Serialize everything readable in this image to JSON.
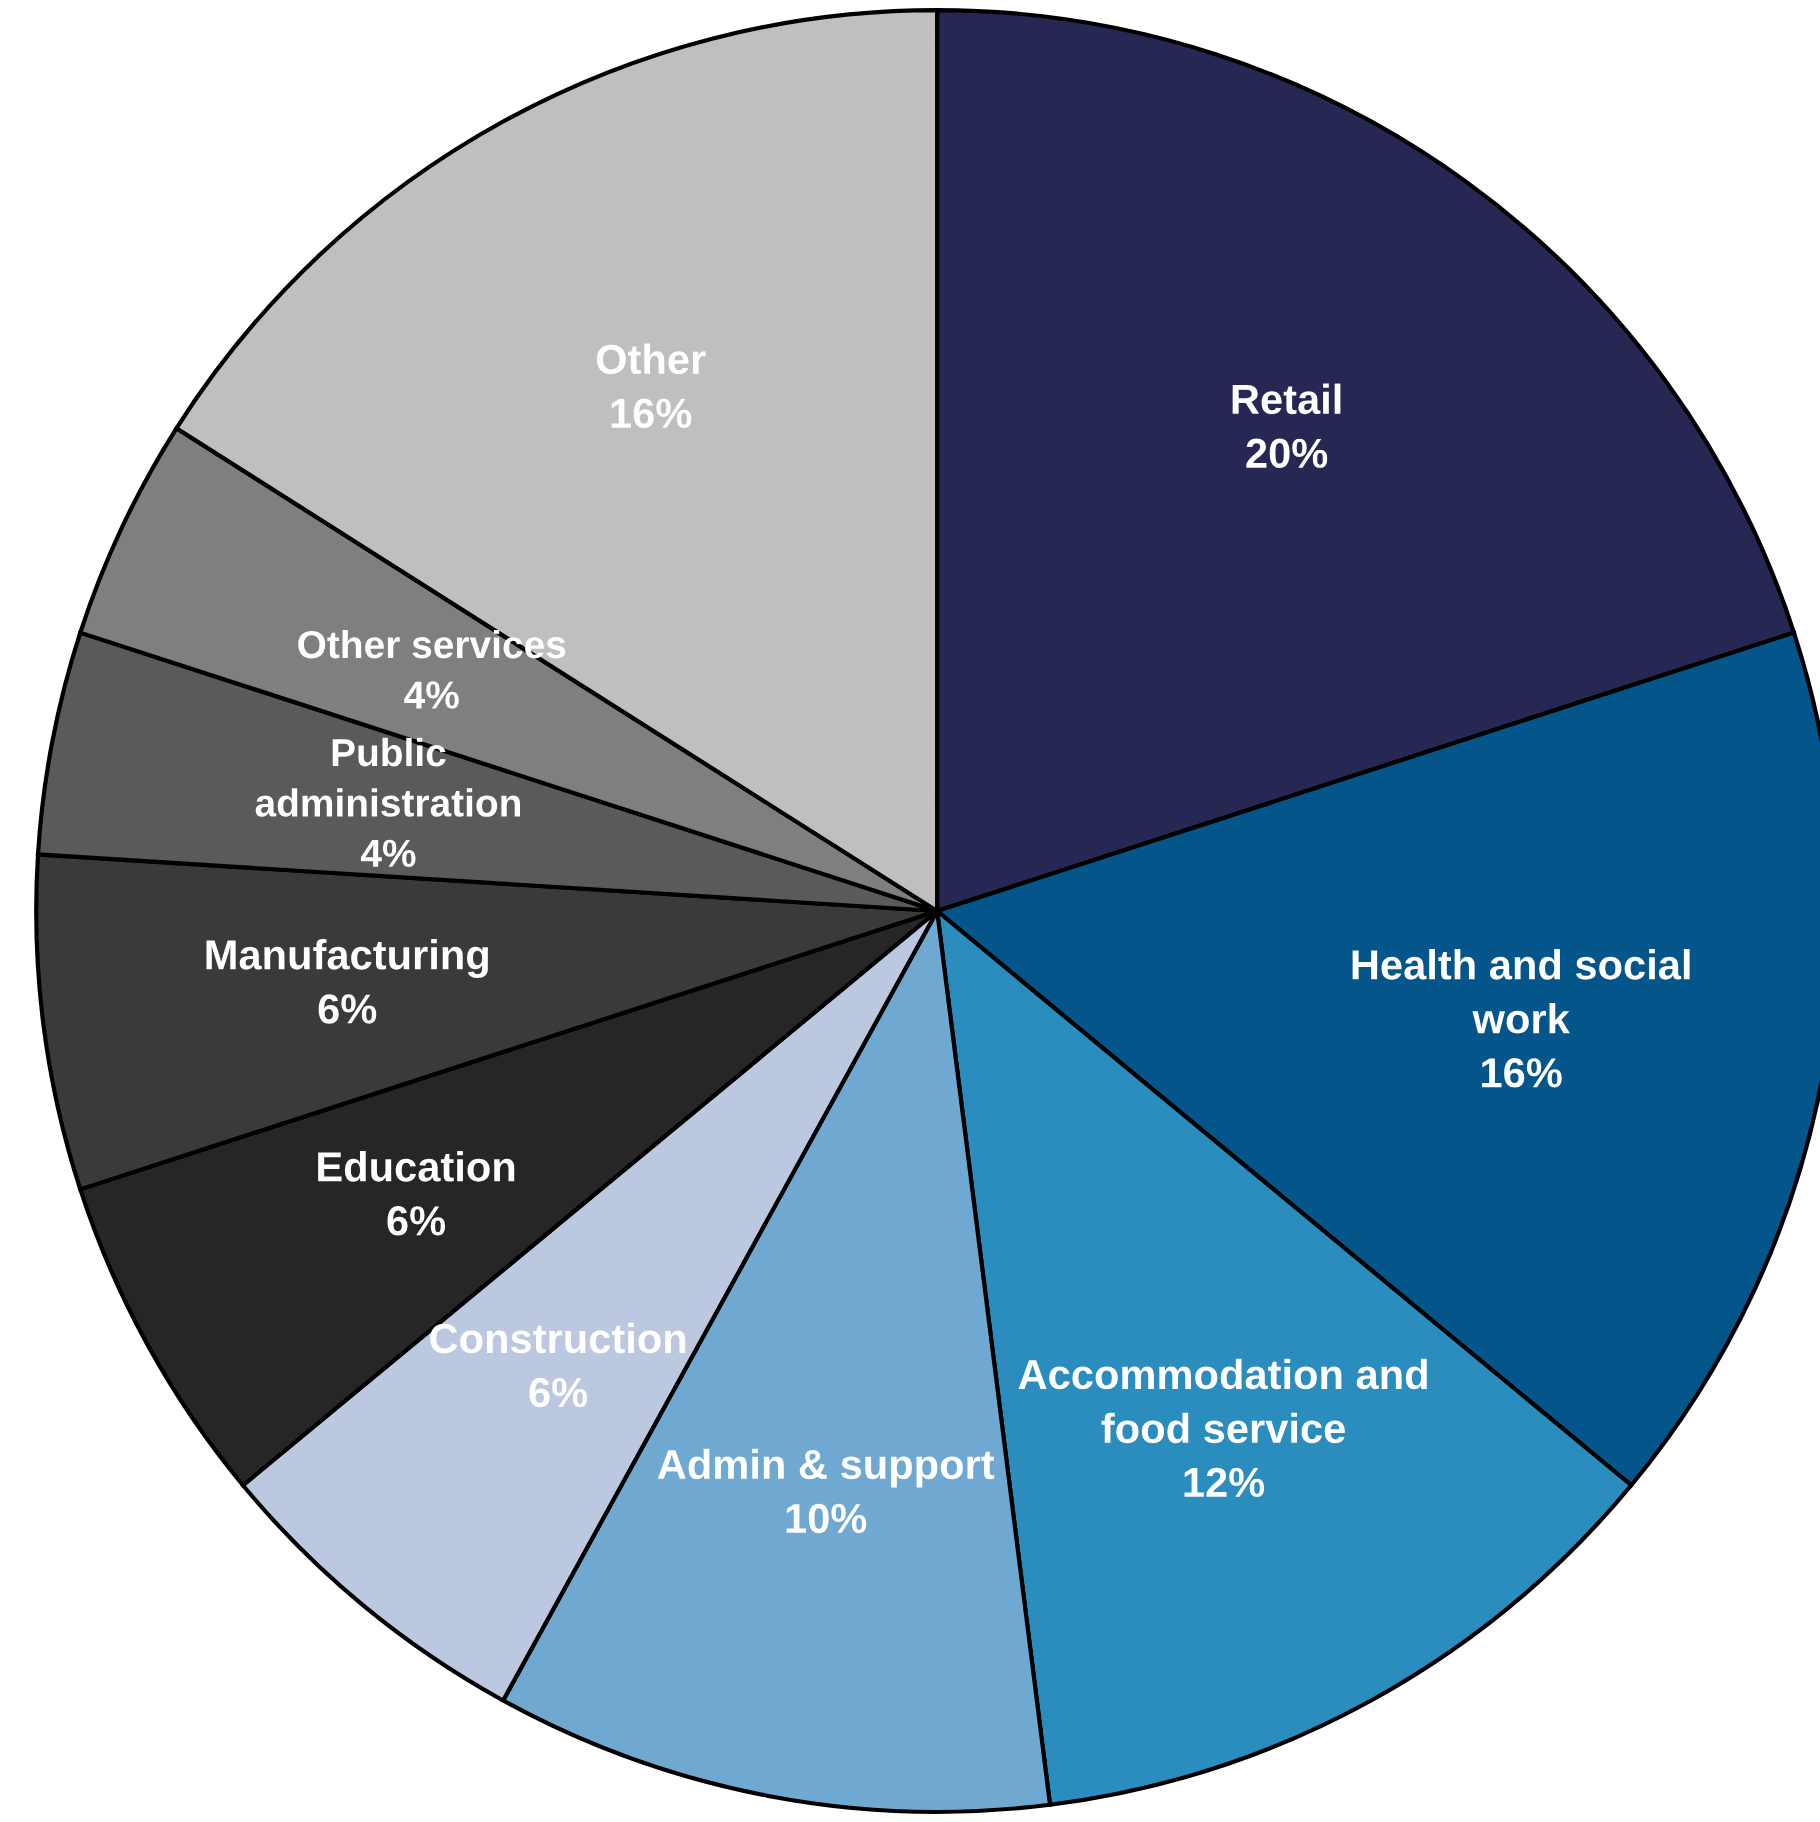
{
  "chart_data": {
    "type": "pie",
    "categories": [
      "Retail",
      "Health and social work",
      "Accommodation and food service",
      "Admin & support",
      "Construction",
      "Education",
      "Manufacturing",
      "Public administration",
      "Other services",
      "Other"
    ],
    "values": [
      20,
      16,
      12,
      10,
      6,
      6,
      6,
      4,
      4,
      16
    ],
    "colors": [
      "#262853",
      "#04558a",
      "#2b8cbe",
      "#6fa8d0",
      "#bcc8e0",
      "#262626",
      "#3a3a3a",
      "#5a5a5a",
      "#7f7f7f",
      "#bfbfbf"
    ],
    "value_labels": [
      "20%",
      "16%",
      "12%",
      "10%",
      "6%",
      "6%",
      "6%",
      "4%",
      "4%",
      "16%"
    ],
    "legend": false
  }
}
